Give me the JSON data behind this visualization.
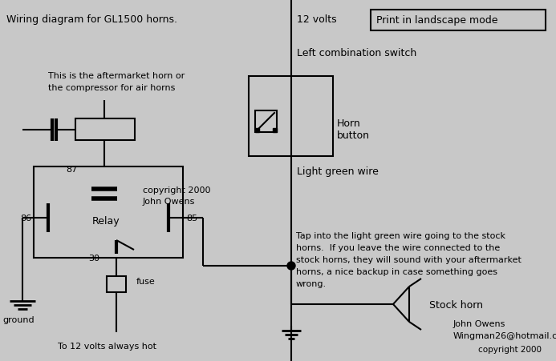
{
  "bg_color": "#c8c8c8",
  "line_color": "black",
  "figsize": [
    6.93,
    4.51
  ],
  "dpi": 100,
  "xlim": [
    0,
    693
  ],
  "ylim": [
    451,
    0
  ]
}
